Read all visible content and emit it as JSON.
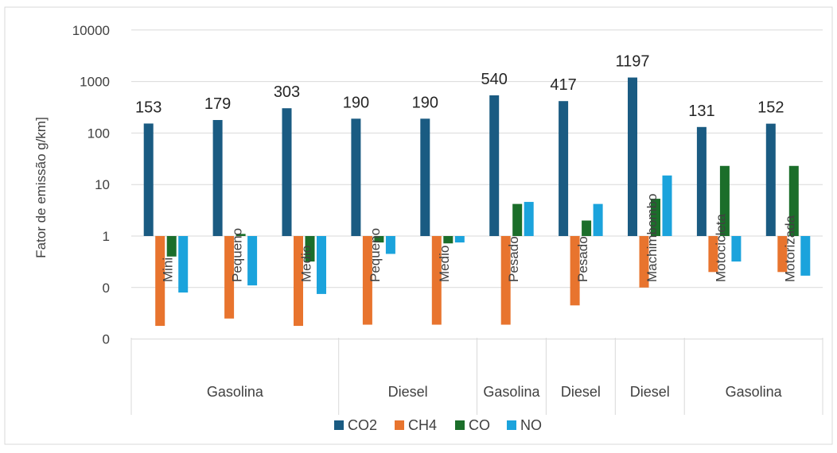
{
  "chart_data": {
    "type": "bar",
    "scale": "log",
    "ylabel": "Fator de emissão g/km]",
    "ylim": [
      0.01,
      10000
    ],
    "y_ticks": [
      {
        "value": 10000,
        "label": "10000"
      },
      {
        "value": 1000,
        "label": "1000"
      },
      {
        "value": 100,
        "label": "100"
      },
      {
        "value": 10,
        "label": "10"
      },
      {
        "value": 1,
        "label": "1"
      },
      {
        "value": 0.1,
        "label": "0"
      },
      {
        "value": 0.01,
        "label": "0"
      }
    ],
    "gridlines": true,
    "legend_position": "bottom",
    "categories": [
      "Mini",
      "Pequeno",
      "Medio",
      "Pequeno",
      "Medio",
      "Pesado",
      "Pesado",
      "Machimbombo",
      "Motocicleta",
      "Motorizada"
    ],
    "groups": [
      {
        "label": "Gasolina",
        "start": 0,
        "end": 2
      },
      {
        "label": "Diesel",
        "start": 3,
        "end": 4
      },
      {
        "label": "Gasolina",
        "start": 5,
        "end": 5
      },
      {
        "label": "Diesel",
        "start": 6,
        "end": 6
      },
      {
        "label": "Diesel",
        "start": 7,
        "end": 7
      },
      {
        "label": "Gasolina",
        "start": 8,
        "end": 9
      }
    ],
    "series": [
      {
        "name": "CO2",
        "color": "#1a5b82",
        "values": [
          153,
          179,
          303,
          190,
          190,
          540,
          417,
          1197,
          131,
          152
        ]
      },
      {
        "name": "CH4",
        "color": "#e8742e",
        "values": [
          0.018,
          0.025,
          0.018,
          0.019,
          0.019,
          0.019,
          0.045,
          0.1,
          0.2,
          0.2
        ]
      },
      {
        "name": "CO",
        "color": "#1b6e2a",
        "values": [
          0.4,
          1.1,
          0.32,
          0.75,
          0.72,
          4.2,
          2.0,
          5.3,
          23,
          23
        ]
      },
      {
        "name": "NO",
        "color": "#1ba3dc",
        "values": [
          0.08,
          0.11,
          0.075,
          0.45,
          0.75,
          4.6,
          4.2,
          15,
          0.32,
          0.17
        ]
      }
    ],
    "data_labels": [
      "153",
      "179",
      "303",
      "190",
      "190",
      "540",
      "417",
      "1197",
      "131",
      "152"
    ]
  }
}
